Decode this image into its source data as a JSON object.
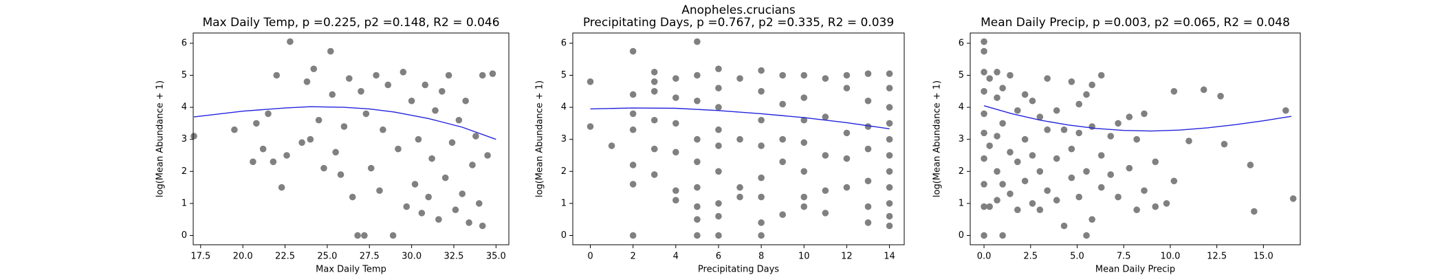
{
  "title": "Anopheles.crucians",
  "chart_data": [
    {
      "type": "scatter",
      "title": "Max Daily Temp, p =0.225, p2 =0.148, R2 = 0.046",
      "xlabel": "Max Daily Temp",
      "ylabel": "log(Mean Abundance + 1)",
      "xlim": [
        17.06,
        35.76
      ],
      "ylim": [
        -0.29,
        6.32
      ],
      "xticks": [
        17.5,
        {
          "value": 20,
          "label": "20.0"
        },
        22.5,
        {
          "value": 25,
          "label": "25.0"
        },
        27.5,
        {
          "value": 30,
          "label": "30.0"
        },
        32.5,
        {
          "value": 35,
          "label": "35.0"
        }
      ],
      "yticks": [
        0,
        1,
        2,
        3,
        4,
        5,
        6
      ],
      "series": [
        {
          "type": "scatter",
          "color": "#808080",
          "x": [
            17.1,
            19.5,
            20.6,
            20.8,
            21.2,
            21.5,
            21.8,
            22,
            22.3,
            22.6,
            22.8,
            23.5,
            23.8,
            24.2,
            24.5,
            24.8,
            25.2,
            25.3,
            25.5,
            25.8,
            26,
            26.3,
            26.5,
            26.8,
            27,
            27.2,
            27.3,
            27.6,
            27.9,
            28.1,
            28.3,
            28.6,
            28.9,
            29.2,
            29.5,
            29.7,
            30,
            30.2,
            30.4,
            30.6,
            30.8,
            31,
            31.2,
            31.4,
            31.6,
            31.8,
            32,
            32.2,
            32.4,
            32.6,
            32.8,
            33,
            33.2,
            33.4,
            33.6,
            33.8,
            34,
            34.2,
            34.5,
            34.8,
            34.2,
            24
          ],
          "y": [
            3.1,
            3.3,
            2.3,
            3.5,
            2.7,
            3.8,
            2.3,
            5.0,
            1.5,
            2.5,
            6.05,
            2.9,
            4.8,
            5.2,
            3.6,
            2.1,
            5.75,
            4.4,
            2.6,
            1.9,
            3.4,
            4.9,
            1.2,
            0,
            4.5,
            0,
            3.8,
            2.1,
            5.0,
            1.4,
            3.3,
            4.7,
            0,
            2.7,
            5.1,
            0.9,
            4.2,
            1.6,
            3.0,
            0.7,
            4.7,
            1.2,
            2.4,
            3.9,
            0.5,
            4.5,
            1.8,
            5.0,
            2.9,
            0.8,
            3.6,
            1.3,
            4.2,
            0.4,
            2.2,
            3.1,
            1.0,
            0.3,
            2.5,
            5.05,
            5.0,
            3.0
          ]
        },
        {
          "type": "line",
          "color": "#2222dd",
          "x": [
            17.1,
            20,
            22.5,
            24,
            26,
            27.5,
            29,
            31,
            33,
            35
          ],
          "y": [
            3.7,
            3.88,
            3.98,
            4.02,
            4.0,
            3.95,
            3.85,
            3.65,
            3.38,
            3.0
          ]
        }
      ]
    },
    {
      "type": "scatter",
      "title": "Precipitating Days, p =0.767, p2 =0.335, R2 = 0.039",
      "xlabel": "Precipitating Days",
      "ylabel": "log(Mean Abundance + 1)",
      "xlim": [
        -0.82,
        14.69
      ],
      "ylim": [
        -0.29,
        6.32
      ],
      "xticks": [
        0,
        2,
        4,
        6,
        8,
        10,
        12,
        14
      ],
      "yticks": [
        0,
        1,
        2,
        3,
        4,
        5,
        6
      ],
      "series": [
        {
          "type": "scatter",
          "color": "#808080",
          "x": [
            0,
            0,
            1,
            2,
            2,
            2,
            2,
            2,
            2,
            2,
            3,
            3,
            3,
            3,
            3,
            3,
            4,
            4,
            4,
            4,
            4,
            4,
            5,
            5,
            5,
            5,
            5,
            5,
            5,
            5,
            5,
            6,
            6,
            6,
            6,
            6,
            6,
            6,
            6,
            6,
            7,
            7,
            7,
            7,
            8,
            8,
            8,
            8,
            8,
            8,
            8,
            8,
            9,
            9,
            9,
            9,
            9,
            10,
            10,
            10,
            10,
            10,
            10,
            10,
            11,
            11,
            11,
            11,
            11,
            12,
            12,
            12,
            12,
            12,
            13,
            13,
            13,
            13,
            13,
            13,
            13,
            14,
            14,
            14,
            14,
            14,
            14,
            14,
            14,
            14,
            14,
            14
          ],
          "y": [
            4.8,
            3.4,
            2.8,
            5.75,
            4.4,
            3.8,
            3.3,
            2.2,
            1.6,
            0,
            5.1,
            4.8,
            4.5,
            3.6,
            2.7,
            1.9,
            4.9,
            4.3,
            3.5,
            2.6,
            1.4,
            1.1,
            6.05,
            5.0,
            4.2,
            3.0,
            2.3,
            1.5,
            0.9,
            0.5,
            0,
            5.2,
            4.6,
            4.0,
            3.3,
            2.8,
            2.0,
            1.0,
            0.6,
            0,
            4.9,
            3.0,
            1.5,
            1.2,
            5.15,
            4.5,
            3.6,
            2.8,
            1.8,
            1.2,
            0.4,
            0,
            5.0,
            4.1,
            3.0,
            2.3,
            0.65,
            5.0,
            4.3,
            3.6,
            2.9,
            2.0,
            1.2,
            0.9,
            4.9,
            3.7,
            2.5,
            1.4,
            0.7,
            5.0,
            4.6,
            3.2,
            2.4,
            1.5,
            5.05,
            4.2,
            3.4,
            2.7,
            1.7,
            0.9,
            0.4,
            5.05,
            4.6,
            4.0,
            3.5,
            3.0,
            2.5,
            2.0,
            1.5,
            1.0,
            0.6,
            0.3
          ]
        },
        {
          "type": "line",
          "color": "#2222dd",
          "x": [
            0,
            2,
            4,
            6,
            8,
            10,
            12,
            14
          ],
          "y": [
            3.95,
            3.98,
            3.97,
            3.9,
            3.8,
            3.68,
            3.52,
            3.33
          ]
        }
      ]
    },
    {
      "type": "scatter",
      "title": "Mean Daily Precip, p =0.003, p2 =0.065, R2 = 0.048",
      "xlabel": "Mean Daily Precip",
      "ylabel": "log(Mean Abundance + 1)",
      "xlim": [
        -0.74,
        16.98
      ],
      "ylim": [
        -0.29,
        6.32
      ],
      "xticks": [
        {
          "value": 0,
          "label": "0.0"
        },
        2.5,
        {
          "value": 5,
          "label": "5.0"
        },
        7.5,
        {
          "value": 10,
          "label": "10.0"
        },
        12.5,
        {
          "value": 15,
          "label": "15.0"
        }
      ],
      "yticks": [
        0,
        1,
        2,
        3,
        4,
        5,
        6
      ],
      "series": [
        {
          "type": "scatter",
          "color": "#808080",
          "x": [
            0,
            0,
            0,
            0,
            0,
            0,
            0,
            0,
            0,
            0,
            0.3,
            0.3,
            0.3,
            0.7,
            0.7,
            0.7,
            0.7,
            0.7,
            1.0,
            1.0,
            1.0,
            1.0,
            1.4,
            1.4,
            1.4,
            1.8,
            1.8,
            1.8,
            2.2,
            2.2,
            2.2,
            2.6,
            2.6,
            2.6,
            3.0,
            3.0,
            3.0,
            3.4,
            3.4,
            3.4,
            3.9,
            3.9,
            3.9,
            4.3,
            4.3,
            4.7,
            4.7,
            4.7,
            5.1,
            5.1,
            5.1,
            5.5,
            5.5,
            5.5,
            5.8,
            5.8,
            5.8,
            6.3,
            6.3,
            6.3,
            6.8,
            6.8,
            7.2,
            7.2,
            7.8,
            7.8,
            8.2,
            8.2,
            8.6,
            8.6,
            9.2,
            9.2,
            9.8,
            10.2,
            10.2,
            11.0,
            11.8,
            12.7,
            12.9,
            14.3,
            14.5,
            16.2,
            16.6
          ],
          "y": [
            6.05,
            5.75,
            5.1,
            4.5,
            3.8,
            3.2,
            2.4,
            1.6,
            0.9,
            0,
            4.9,
            2.8,
            0.9,
            5.1,
            4.3,
            3.1,
            2.0,
            1.1,
            4.6,
            3.5,
            1.6,
            0,
            5.0,
            2.6,
            1.3,
            3.9,
            2.3,
            0.8,
            4.4,
            3.0,
            1.7,
            4.2,
            2.5,
            1.0,
            3.7,
            2.0,
            0.8,
            4.9,
            3.3,
            1.4,
            3.9,
            2.4,
            1.1,
            3.3,
            0.3,
            4.8,
            2.7,
            1.8,
            4.1,
            3.2,
            1.2,
            4.4,
            2.0,
            0,
            4.7,
            3.4,
            0.5,
            5.0,
            2.5,
            1.5,
            3.1,
            1.9,
            3.5,
            1.2,
            3.7,
            2.1,
            3.0,
            0.8,
            3.8,
            1.4,
            2.3,
            0.9,
            1.0,
            4.5,
            1.7,
            2.95,
            4.55,
            4.35,
            2.85,
            2.2,
            0.75,
            3.9,
            1.15
          ]
        },
        {
          "type": "line",
          "color": "#2222dd",
          "x": [
            0,
            1.5,
            3,
            4.5,
            6,
            7.5,
            9,
            10.5,
            12,
            13.5,
            15,
            16.5
          ],
          "y": [
            4.05,
            3.8,
            3.6,
            3.45,
            3.34,
            3.28,
            3.26,
            3.29,
            3.36,
            3.46,
            3.58,
            3.72
          ]
        }
      ]
    }
  ]
}
